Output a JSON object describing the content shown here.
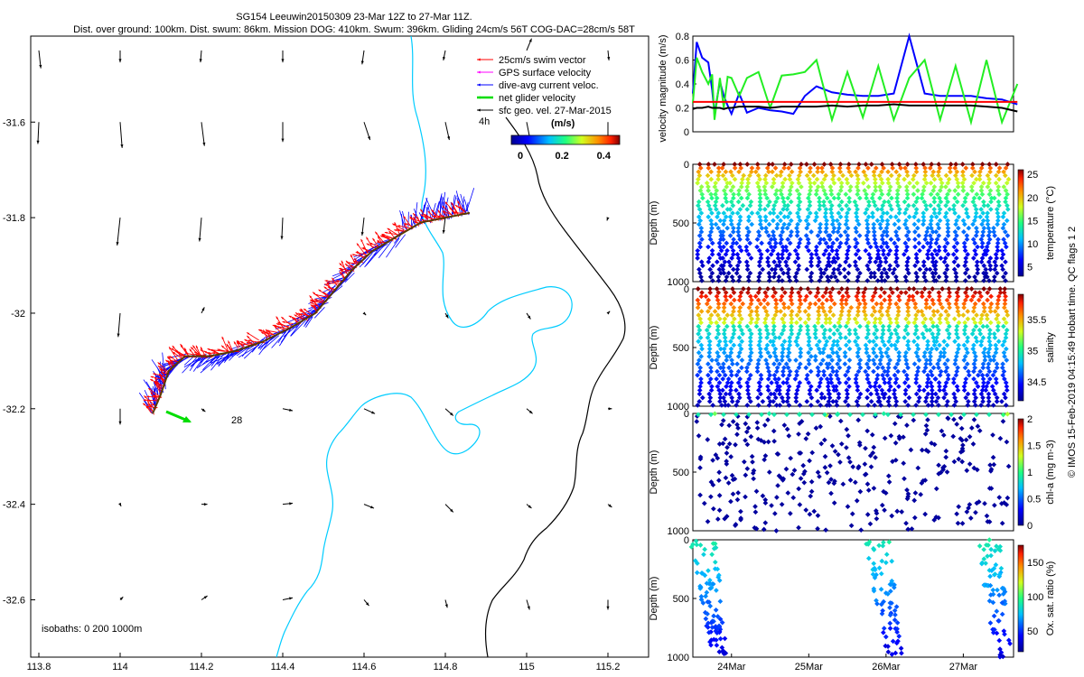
{
  "header": {
    "line1": "SG154 Leeuwin20150309 23-Mar 12Z to 27-Mar 11Z.",
    "line2": "Dist. over ground: 100km. Dist. swum: 86km. Mission DOG: 410km. Swum: 396km. Gliding 24cm/s 56T COG-DAC=28cm/s 58T"
  },
  "footer_note": "© IMOS 15-Feb-2019 04:15:49 Hobart time. QC flags 1  2",
  "colors": {
    "swim": "#ff0000",
    "gps": "#ff00ff",
    "dac": "#0000ff",
    "net": "#00dd00",
    "sfc": "#000000",
    "isobath": "#00ccff",
    "coast": "#000000"
  },
  "chart_data": [
    {
      "type": "map",
      "xlim": [
        113.78,
        115.3
      ],
      "ylim": [
        -32.72,
        -31.42
      ],
      "x_ticks": [
        "113.8",
        "114",
        "114.2",
        "114.4",
        "114.6",
        "114.8",
        "115",
        "115.2"
      ],
      "x_tick_values": [
        113.8,
        114.0,
        114.2,
        114.4,
        114.6,
        114.8,
        115.0,
        115.2
      ],
      "y_ticks": [
        "-31.6",
        "-31.8",
        "-32",
        "-32.2",
        "-32.4",
        "-32.6"
      ],
      "y_tick_values": [
        -31.6,
        -31.8,
        -32.0,
        -32.2,
        -32.4,
        -32.6
      ],
      "legend": [
        {
          "label": "25cm/s swim vector",
          "color": "#ff0000"
        },
        {
          "label": "GPS surface velocity",
          "color": "#ff00ff"
        },
        {
          "label": "dive-avg current veloc.",
          "color": "#0000ff"
        },
        {
          "label": "net glider velocity",
          "color": "#00dd00"
        },
        {
          "label": "sfc geo. vel. 27-Mar-2015",
          "color": "#000000"
        }
      ],
      "colorbar_title": "(m/s)",
      "colorbar_ticks": [
        "0",
        "0.2",
        "0.4"
      ],
      "label_4h": "4h",
      "track_label": "28",
      "isobath_label": "isobaths: 0   200  1000m",
      "track": [
        [
          114.08,
          -32.21
        ],
        [
          114.1,
          -32.17
        ],
        [
          114.12,
          -32.12
        ],
        [
          114.16,
          -32.09
        ],
        [
          114.22,
          -32.09
        ],
        [
          114.28,
          -32.08
        ],
        [
          114.35,
          -32.06
        ],
        [
          114.42,
          -32.03
        ],
        [
          114.48,
          -32.0
        ],
        [
          114.52,
          -31.96
        ],
        [
          114.57,
          -31.91
        ],
        [
          114.62,
          -31.87
        ],
        [
          114.68,
          -31.84
        ],
        [
          114.74,
          -31.81
        ],
        [
          114.8,
          -31.8
        ],
        [
          114.86,
          -31.79
        ]
      ],
      "sfc_vectors": [
        [
          113.8,
          -31.45,
          0.02,
          -0.18
        ],
        [
          114.0,
          -31.45,
          0.0,
          -0.12
        ],
        [
          114.2,
          -31.45,
          -0.01,
          -0.12
        ],
        [
          114.4,
          -31.45,
          0.0,
          -0.12
        ],
        [
          114.6,
          -31.45,
          -0.02,
          -0.14
        ],
        [
          114.8,
          -31.45,
          -0.02,
          -0.1
        ],
        [
          115.0,
          -31.45,
          0.05,
          0.12
        ],
        [
          115.2,
          -31.45,
          0.01,
          -0.1
        ],
        [
          113.8,
          -31.6,
          -0.01,
          -0.22
        ],
        [
          114.0,
          -31.6,
          0.02,
          -0.26
        ],
        [
          114.2,
          -31.6,
          0.03,
          -0.24
        ],
        [
          114.4,
          -31.6,
          0.0,
          -0.2
        ],
        [
          114.6,
          -31.6,
          0.06,
          -0.18
        ],
        [
          114.8,
          -31.6,
          0.04,
          -0.18
        ],
        [
          115.0,
          -31.6,
          0.04,
          -0.2
        ],
        [
          115.2,
          -31.6,
          0.0,
          -0.2
        ],
        [
          114.0,
          -31.8,
          -0.03,
          -0.28
        ],
        [
          114.2,
          -31.8,
          -0.02,
          -0.24
        ],
        [
          114.4,
          -31.8,
          -0.01,
          -0.22
        ],
        [
          114.6,
          -31.8,
          -0.02,
          -0.18
        ],
        [
          114.8,
          -31.8,
          -0.02,
          -0.16
        ],
        [
          115.2,
          -31.8,
          -0.01,
          -0.03
        ],
        [
          114.0,
          -32.0,
          -0.02,
          -0.24
        ],
        [
          114.2,
          -32.0,
          0.03,
          0.06
        ],
        [
          114.6,
          -32.0,
          0.02,
          -0.02
        ],
        [
          114.8,
          -32.0,
          0.03,
          -0.05
        ],
        [
          115.0,
          -32.0,
          0.04,
          -0.06
        ],
        [
          115.2,
          -32.0,
          0.02,
          0.02
        ],
        [
          114.0,
          -32.2,
          0.0,
          -0.16
        ],
        [
          114.2,
          -32.2,
          0.04,
          -0.03
        ],
        [
          114.4,
          -32.2,
          0.1,
          -0.02
        ],
        [
          114.6,
          -32.2,
          0.11,
          -0.05
        ],
        [
          114.8,
          -32.2,
          0.08,
          -0.07
        ],
        [
          115.0,
          -32.2,
          0.06,
          -0.05
        ],
        [
          115.2,
          -32.2,
          0.04,
          0.0
        ],
        [
          114.0,
          -32.4,
          0.01,
          -0.02
        ],
        [
          114.2,
          -32.4,
          0.06,
          0.0
        ],
        [
          114.4,
          -32.4,
          0.1,
          0.01
        ],
        [
          114.6,
          -32.4,
          0.1,
          -0.04
        ],
        [
          114.8,
          -32.4,
          0.08,
          -0.08
        ],
        [
          115.0,
          -32.4,
          0.05,
          -0.04
        ],
        [
          115.2,
          -32.4,
          0.04,
          -0.03
        ],
        [
          114.0,
          -32.6,
          0.03,
          0.03
        ],
        [
          114.2,
          -32.6,
          0.06,
          0.04
        ],
        [
          114.4,
          -32.6,
          0.1,
          0.02
        ],
        [
          114.6,
          -32.6,
          0.05,
          -0.06
        ],
        [
          114.8,
          -32.6,
          0.02,
          -0.08
        ],
        [
          115.0,
          -32.6,
          0.03,
          -0.1
        ],
        [
          115.2,
          -32.6,
          0.0,
          -0.1
        ]
      ]
    },
    {
      "type": "line",
      "ylabel": "velocity magnitude (m/s)",
      "ylim": [
        0,
        0.8
      ],
      "y_ticks": [
        "0",
        "0.2",
        "0.4",
        "0.6",
        "0.8"
      ],
      "x": [
        23.5,
        23.55,
        23.62,
        23.7,
        23.75,
        23.78,
        23.85,
        23.9,
        23.95,
        24.0,
        24.1,
        24.2,
        24.35,
        24.5,
        24.65,
        24.8,
        24.95,
        25.1,
        25.3,
        25.5,
        25.7,
        25.9,
        26.1,
        26.3,
        26.5,
        26.7,
        26.9,
        27.1,
        27.3,
        27.5,
        27.7
      ],
      "series": [
        {
          "values": [
            0.32,
            0.75,
            0.62,
            0.58,
            0.35,
            0.15,
            0.42,
            0.3,
            0.22,
            0.15,
            0.32,
            0.16,
            0.2,
            0.18,
            0.17,
            0.15,
            0.3,
            0.38,
            0.33,
            0.31,
            0.3,
            0.3,
            0.32,
            0.8,
            0.32,
            0.3,
            0.3,
            0.3,
            0.28,
            0.27,
            0.23
          ],
          "color": "#0000ff"
        },
        {
          "values": [
            0.24,
            0.62,
            0.5,
            0.4,
            0.48,
            0.1,
            0.45,
            0.2,
            0.46,
            0.45,
            0.3,
            0.45,
            0.5,
            0.2,
            0.47,
            0.48,
            0.5,
            0.6,
            0.1,
            0.5,
            0.12,
            0.55,
            0.1,
            0.45,
            0.6,
            0.1,
            0.55,
            0.08,
            0.6,
            0.08,
            0.4
          ],
          "color": "#22ee22"
        },
        {
          "values": [
            0.25,
            0.25,
            0.25,
            0.25,
            0.25,
            0.25,
            0.25,
            0.25,
            0.25,
            0.25,
            0.25,
            0.25,
            0.25,
            0.25,
            0.25,
            0.25,
            0.25,
            0.25,
            0.25,
            0.25,
            0.25,
            0.25,
            0.25,
            0.25,
            0.25,
            0.25,
            0.25,
            0.25,
            0.25,
            0.25,
            0.25
          ],
          "color": "#ff0000"
        },
        {
          "values": [
            0.19,
            0.2,
            0.2,
            0.21,
            0.2,
            0.2,
            0.2,
            0.19,
            0.2,
            0.2,
            0.21,
            0.21,
            0.21,
            0.2,
            0.21,
            0.21,
            0.21,
            0.21,
            0.22,
            0.21,
            0.22,
            0.22,
            0.23,
            0.22,
            0.22,
            0.22,
            0.22,
            0.22,
            0.21,
            0.2,
            0.17
          ],
          "color": "#000000"
        }
      ]
    },
    {
      "type": "scatter",
      "ylabel": "Depth (m)",
      "cbar_label": "temperature (°C)",
      "ylim": [
        0,
        1000
      ],
      "y_ticks": [
        "0",
        "500",
        "1000"
      ],
      "cbar_range": [
        3,
        26
      ],
      "cbar_ticks": [
        "5",
        "10",
        "15",
        "20",
        "25"
      ],
      "cbar_tick_values": [
        5,
        10,
        15,
        20,
        25
      ]
    },
    {
      "type": "scatter",
      "ylabel": "Depth (m)",
      "cbar_label": "salinity",
      "ylim": [
        0,
        1000
      ],
      "y_ticks": [
        "0",
        "500",
        "1000"
      ],
      "cbar_range": [
        34.2,
        35.9
      ],
      "cbar_ticks": [
        "34.5",
        "35",
        "35.5"
      ],
      "cbar_tick_values": [
        34.5,
        35.0,
        35.5
      ]
    },
    {
      "type": "scatter",
      "ylabel": "Depth (m)",
      "cbar_label": "chl-a (mg m-3)",
      "ylim": [
        0,
        1000
      ],
      "y_ticks": [
        "0",
        "500",
        "1000"
      ],
      "cbar_range": [
        0,
        2
      ],
      "cbar_ticks": [
        "0",
        "0.5",
        "1",
        "1.5",
        "2"
      ],
      "cbar_tick_values": [
        0,
        0.5,
        1,
        1.5,
        2
      ]
    },
    {
      "type": "scatter",
      "ylabel": "Depth (m)",
      "cbar_label": "Ox. sat. ratio (%)",
      "ylim": [
        0,
        1000
      ],
      "y_ticks": [
        "0",
        "500",
        "1000"
      ],
      "cbar_range": [
        20,
        175
      ],
      "cbar_ticks": [
        "50",
        "100",
        "150"
      ],
      "cbar_tick_values": [
        50,
        100,
        150
      ],
      "x_ticks": [
        "24Mar",
        "25Mar",
        "26Mar",
        "27Mar"
      ],
      "x_tick_values": [
        24,
        25,
        26,
        27
      ],
      "xlim": [
        23.5,
        27.65
      ]
    }
  ]
}
